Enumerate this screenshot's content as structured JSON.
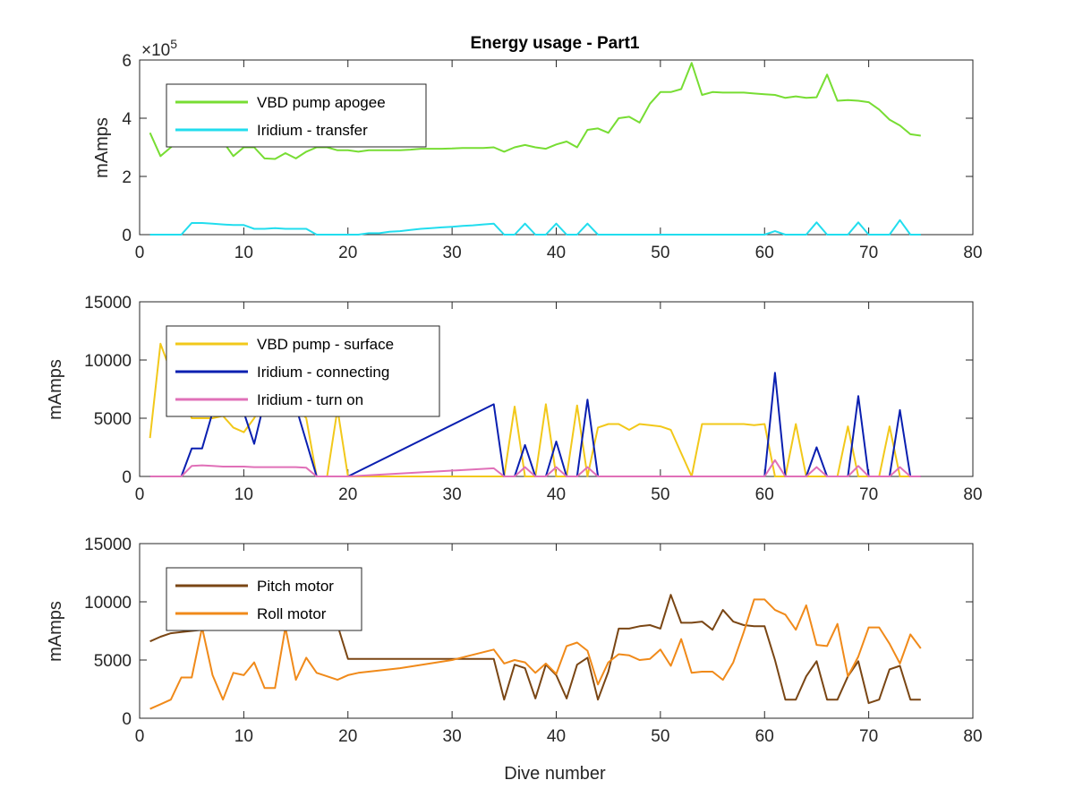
{
  "colors": {
    "background": "#ffffff",
    "axis": "#262626"
  },
  "chart_data": [
    {
      "type": "line",
      "title": "Energy usage - Part1",
      "xlabel": "",
      "ylabel": "mAmps",
      "xlim": [
        0,
        80
      ],
      "ylim": [
        0,
        600000
      ],
      "xticks": [
        0,
        10,
        20,
        30,
        40,
        50,
        60,
        70,
        80
      ],
      "yticks": [
        0,
        200000,
        400000,
        600000
      ],
      "ytick_labels": [
        "0",
        "2",
        "4",
        "6"
      ],
      "y_exponent_label": "×10",
      "y_exponent_power": "5",
      "grid": false,
      "legend_position": "top-left",
      "series": [
        {
          "name": "VBD pump apogee",
          "color": "#77dd33",
          "x": [
            1,
            2,
            3,
            4,
            5,
            6,
            7,
            8,
            9,
            10,
            11,
            12,
            13,
            14,
            15,
            16,
            17,
            18,
            19,
            20,
            21,
            22,
            23,
            24,
            25,
            26,
            27,
            28,
            29,
            30,
            31,
            32,
            33,
            34,
            35,
            36,
            37,
            38,
            39,
            40,
            41,
            42,
            43,
            44,
            45,
            46,
            47,
            48,
            49,
            50,
            51,
            52,
            53,
            54,
            55,
            56,
            57,
            58,
            59,
            60,
            61,
            62,
            63,
            64,
            65,
            66,
            67,
            68,
            69,
            70,
            71,
            72,
            73,
            74,
            75
          ],
          "values": [
            350000,
            270000,
            300000,
            330000,
            340000,
            330000,
            310000,
            320000,
            270000,
            300000,
            300000,
            262000,
            260000,
            280000,
            262000,
            285000,
            300000,
            300000,
            290000,
            290000,
            285000,
            290000,
            290000,
            290000,
            290000,
            292000,
            295000,
            295000,
            295000,
            296000,
            298000,
            298000,
            298000,
            300000,
            285000,
            300000,
            308000,
            300000,
            295000,
            310000,
            320000,
            300000,
            360000,
            365000,
            350000,
            400000,
            405000,
            385000,
            450000,
            490000,
            490000,
            500000,
            590000,
            480000,
            490000,
            488000,
            488000,
            488000,
            485000,
            482000,
            480000,
            470000,
            475000,
            470000,
            472000,
            550000,
            460000,
            462000,
            460000,
            455000,
            430000,
            395000,
            375000,
            345000,
            340000
          ]
        },
        {
          "name": "Iridium - transfer",
          "color": "#22ddee",
          "x": [
            1,
            2,
            3,
            4,
            5,
            6,
            7,
            8,
            9,
            10,
            11,
            12,
            13,
            14,
            15,
            16,
            17,
            18,
            19,
            20,
            21,
            22,
            23,
            24,
            25,
            26,
            27,
            28,
            29,
            30,
            31,
            32,
            33,
            34,
            35,
            36,
            37,
            38,
            39,
            40,
            41,
            42,
            43,
            44,
            45,
            46,
            47,
            48,
            49,
            50,
            51,
            52,
            53,
            54,
            55,
            56,
            57,
            58,
            59,
            60,
            61,
            62,
            63,
            64,
            65,
            66,
            67,
            68,
            69,
            70,
            71,
            72,
            73,
            74,
            75
          ],
          "values": [
            0,
            0,
            0,
            0,
            40000,
            40000,
            38000,
            35000,
            33000,
            33000,
            20000,
            20000,
            22000,
            20000,
            20000,
            20000,
            0,
            0,
            0,
            0,
            0,
            5000,
            5000,
            10000,
            12000,
            16000,
            20000,
            22000,
            25000,
            27000,
            30000,
            32000,
            35000,
            38000,
            0,
            0,
            38000,
            0,
            0,
            38000,
            0,
            0,
            38000,
            0,
            0,
            0,
            0,
            0,
            0,
            0,
            0,
            0,
            0,
            0,
            0,
            0,
            0,
            0,
            0,
            0,
            12000,
            0,
            0,
            0,
            42000,
            0,
            0,
            0,
            42000,
            0,
            0,
            0,
            50000,
            0,
            0
          ]
        }
      ]
    },
    {
      "type": "line",
      "title": "",
      "xlabel": "",
      "ylabel": "mAmps",
      "xlim": [
        0,
        80
      ],
      "ylim": [
        0,
        15000
      ],
      "xticks": [
        0,
        10,
        20,
        30,
        40,
        50,
        60,
        70,
        80
      ],
      "yticks": [
        0,
        5000,
        10000,
        15000
      ],
      "ytick_labels": [
        "0",
        "5000",
        "10000",
        "15000"
      ],
      "grid": false,
      "legend_position": "top-left",
      "series": [
        {
          "name": "VBD pump - surface",
          "color": "#f2c81a",
          "x": [
            1,
            2,
            3,
            4,
            5,
            6,
            7,
            8,
            9,
            10,
            11,
            12,
            13,
            14,
            15,
            16,
            17,
            18,
            19,
            20,
            21,
            22,
            23,
            24,
            25,
            26,
            27,
            28,
            29,
            30,
            31,
            32,
            33,
            34,
            35,
            36,
            37,
            38,
            39,
            40,
            41,
            42,
            43,
            44,
            45,
            46,
            47,
            48,
            49,
            50,
            51,
            52,
            53,
            54,
            55,
            56,
            57,
            58,
            59,
            60,
            61,
            62,
            63,
            64,
            65,
            66,
            67,
            68,
            69,
            70,
            71,
            72,
            73,
            74,
            75
          ],
          "values": [
            3300,
            11400,
            9000,
            7500,
            5000,
            5000,
            5000,
            5200,
            4200,
            3800,
            5000,
            6800,
            6000,
            5500,
            6000,
            5000,
            0,
            0,
            5800,
            0,
            0,
            0,
            0,
            0,
            0,
            0,
            0,
            0,
            0,
            0,
            0,
            0,
            0,
            0,
            0,
            6000,
            0,
            0,
            6200,
            0,
            0,
            6100,
            0,
            4200,
            4500,
            4500,
            4000,
            4500,
            4400,
            4300,
            4000,
            2000,
            0,
            4500,
            4500,
            4500,
            4500,
            4500,
            4400,
            4500,
            0,
            0,
            4500,
            0,
            0,
            0,
            0,
            4300,
            0,
            0,
            0,
            4300,
            0,
            0,
            0
          ]
        },
        {
          "name": "Iridium - connecting",
          "color": "#0a1fb0",
          "x": [
            1,
            2,
            3,
            4,
            5,
            6,
            7,
            8,
            9,
            10,
            11,
            12,
            13,
            14,
            15,
            16,
            17,
            20,
            34,
            35,
            36,
            37,
            38,
            39,
            40,
            41,
            42,
            43,
            44,
            60,
            61,
            62,
            63,
            64,
            65,
            66,
            67,
            68,
            69,
            70,
            71,
            72,
            73,
            74,
            75
          ],
          "values": [
            0,
            0,
            0,
            0,
            2400,
            2400,
            5500,
            5500,
            5500,
            5500,
            2800,
            6500,
            6200,
            6000,
            6000,
            3000,
            0,
            0,
            6200,
            0,
            0,
            2700,
            0,
            0,
            3000,
            0,
            0,
            6600,
            0,
            0,
            8900,
            0,
            0,
            0,
            2500,
            0,
            0,
            0,
            6900,
            0,
            0,
            0,
            5700,
            0,
            0
          ]
        },
        {
          "name": "Iridium - turn on",
          "color": "#e070b8",
          "x": [
            1,
            2,
            3,
            4,
            5,
            6,
            7,
            8,
            9,
            10,
            11,
            12,
            13,
            14,
            15,
            16,
            17,
            18,
            19,
            20,
            34,
            35,
            36,
            37,
            38,
            39,
            40,
            41,
            42,
            43,
            44,
            60,
            61,
            62,
            63,
            64,
            65,
            66,
            67,
            68,
            69,
            70,
            71,
            72,
            73,
            74,
            75
          ],
          "values": [
            0,
            0,
            0,
            0,
            900,
            950,
            900,
            850,
            850,
            850,
            800,
            800,
            800,
            800,
            800,
            750,
            0,
            0,
            0,
            0,
            700,
            0,
            0,
            800,
            0,
            0,
            800,
            0,
            0,
            800,
            0,
            0,
            1400,
            0,
            0,
            0,
            800,
            0,
            0,
            0,
            900,
            0,
            0,
            0,
            800,
            0,
            0
          ]
        }
      ]
    },
    {
      "type": "line",
      "title": "",
      "xlabel": "Dive number",
      "ylabel": "mAmps",
      "xlim": [
        0,
        80
      ],
      "ylim": [
        0,
        15000
      ],
      "xticks": [
        0,
        10,
        20,
        30,
        40,
        50,
        60,
        70,
        80
      ],
      "yticks": [
        0,
        5000,
        10000,
        15000
      ],
      "ytick_labels": [
        "0",
        "5000",
        "10000",
        "15000"
      ],
      "grid": false,
      "legend_position": "top-left",
      "series": [
        {
          "name": "Pitch motor",
          "color": "#7a4614",
          "x": [
            1,
            2,
            3,
            4,
            5,
            6,
            7,
            8,
            9,
            10,
            11,
            12,
            13,
            14,
            15,
            16,
            17,
            18,
            19,
            20,
            21,
            22,
            25,
            30,
            34,
            35,
            36,
            37,
            38,
            39,
            40,
            41,
            42,
            43,
            44,
            45,
            46,
            47,
            48,
            49,
            50,
            51,
            52,
            53,
            54,
            55,
            56,
            57,
            58,
            59,
            60,
            61,
            62,
            63,
            64,
            65,
            66,
            67,
            68,
            69,
            70,
            71,
            72,
            73,
            74,
            75
          ],
          "values": [
            6600,
            7000,
            7300,
            7400,
            7500,
            7600,
            7600,
            7600,
            7600,
            7700,
            7800,
            7800,
            7900,
            8000,
            8000,
            8000,
            8000,
            8000,
            8000,
            5100,
            5100,
            5100,
            5100,
            5100,
            5100,
            1600,
            4600,
            4300,
            1700,
            4600,
            3700,
            1700,
            4600,
            5200,
            1600,
            4000,
            7700,
            7700,
            7900,
            8000,
            7700,
            10600,
            8200,
            8200,
            8300,
            7600,
            9300,
            8300,
            8000,
            7900,
            7900,
            5000,
            1600,
            1600,
            3600,
            4900,
            1600,
            1600,
            3600,
            4900,
            1300,
            1600,
            4200,
            4500,
            1600,
            1600
          ]
        },
        {
          "name": "Roll motor",
          "color": "#f08a1a",
          "x": [
            1,
            2,
            3,
            4,
            5,
            6,
            7,
            8,
            9,
            10,
            11,
            12,
            13,
            14,
            15,
            16,
            17,
            18,
            19,
            20,
            21,
            25,
            30,
            34,
            35,
            36,
            37,
            38,
            39,
            40,
            41,
            42,
            43,
            44,
            45,
            46,
            47,
            48,
            49,
            50,
            51,
            52,
            53,
            54,
            55,
            56,
            57,
            58,
            59,
            60,
            61,
            62,
            63,
            64,
            65,
            66,
            67,
            68,
            69,
            70,
            71,
            72,
            73,
            74,
            75
          ],
          "values": [
            800,
            1200,
            1600,
            3500,
            3500,
            7800,
            3700,
            1600,
            3900,
            3700,
            4800,
            2600,
            2600,
            7800,
            3300,
            5200,
            3900,
            3600,
            3300,
            3700,
            3900,
            4300,
            5000,
            5900,
            4700,
            5000,
            4800,
            3900,
            4700,
            3800,
            6200,
            6500,
            5800,
            2900,
            4800,
            5500,
            5400,
            5000,
            5100,
            5900,
            4500,
            6800,
            3900,
            4000,
            4000,
            3300,
            4800,
            7400,
            10200,
            10200,
            9300,
            8900,
            7600,
            9700,
            6300,
            6200,
            8100,
            3600,
            5300,
            7800,
            7800,
            6400,
            4700,
            7200,
            6000
          ]
        }
      ]
    }
  ]
}
